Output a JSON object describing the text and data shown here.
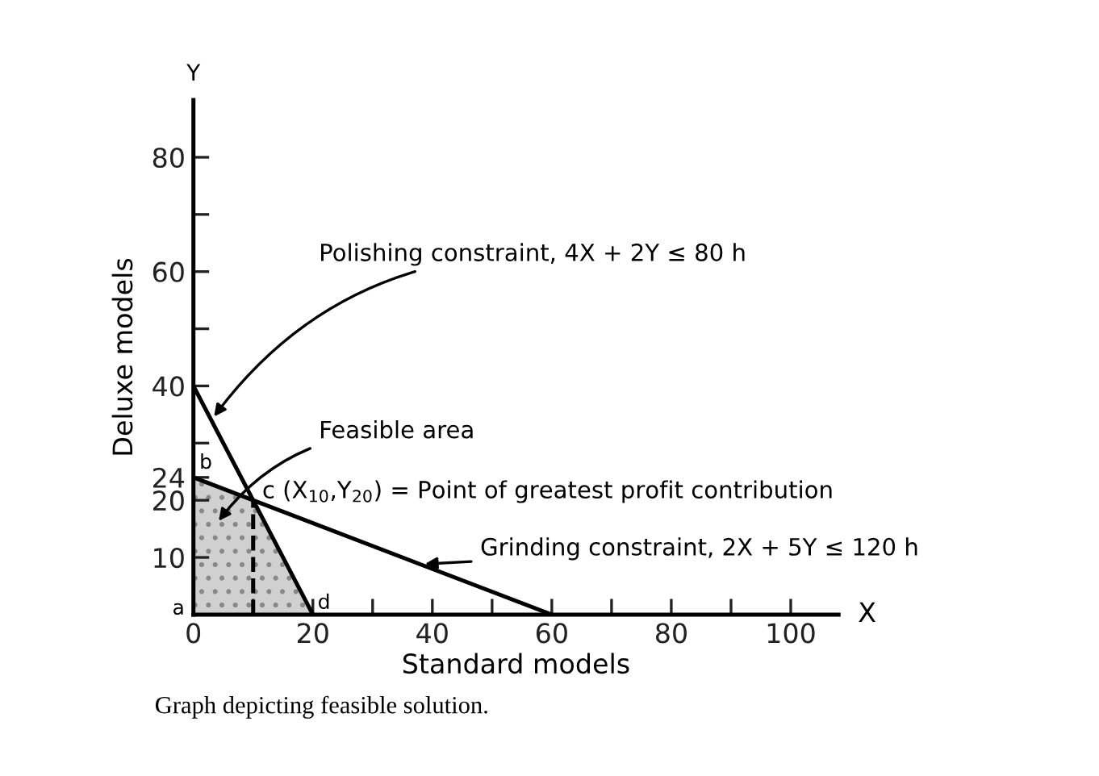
{
  "chart_data": {
    "type": "line",
    "xlabel": "Standard models",
    "ylabel": "Deluxe models",
    "xlim": [
      0,
      108
    ],
    "ylim": [
      0,
      90
    ],
    "xticks": [
      0,
      {
        "value": 10,
        "label": null
      },
      20,
      {
        "value": 30,
        "label": null
      },
      40,
      {
        "value": 50,
        "label": null
      },
      60,
      {
        "value": 70,
        "label": null
      },
      80,
      {
        "value": 90,
        "label": null
      },
      100
    ],
    "yticks": [
      10,
      20,
      24,
      {
        "value": 30,
        "label": null
      },
      40,
      {
        "value": 50,
        "label": null
      },
      60,
      {
        "value": 70,
        "label": null
      },
      80
    ],
    "grid": false,
    "legend": false,
    "marker": "none",
    "series": [
      {
        "type": "area",
        "color": "#d0d0d0",
        "x": [
          0,
          10,
          20
        ],
        "values": [
          24,
          20,
          0
        ]
      },
      {
        "color": "#000000",
        "x": [
          0,
          20
        ],
        "values": [
          40,
          0
        ],
        "line_style": "solid"
      },
      {
        "color": "#000000",
        "x": [
          0,
          60
        ],
        "values": [
          24,
          0
        ],
        "line_style": "solid"
      },
      {
        "color": "#000000",
        "x": [
          10,
          10
        ],
        "values": [
          0,
          20
        ],
        "line_style": "dashed"
      }
    ],
    "annotations": [
      {
        "text": "Polishing constraint, 4X + 2Y ≤ 80 h",
        "x": 3,
        "y": 34
      },
      "Feasible area",
      {
        "text": "c (X$_{10}$,Y$_{20}$) = Point of greatest profit contribution",
        "x": 10,
        "y": 20
      },
      {
        "text": "Grinding constraint, 2X + 5Y ≤ 120 h",
        "x": 38,
        "y": 8.8
      },
      {
        "text": "a",
        "x": 0,
        "y": 0
      },
      {
        "text": "b",
        "x": 0,
        "y": 24
      },
      {
        "text": "d",
        "x": 20,
        "y": 0
      },
      "Y",
      "X",
      "Graph depicting feasible solution."
    ]
  }
}
